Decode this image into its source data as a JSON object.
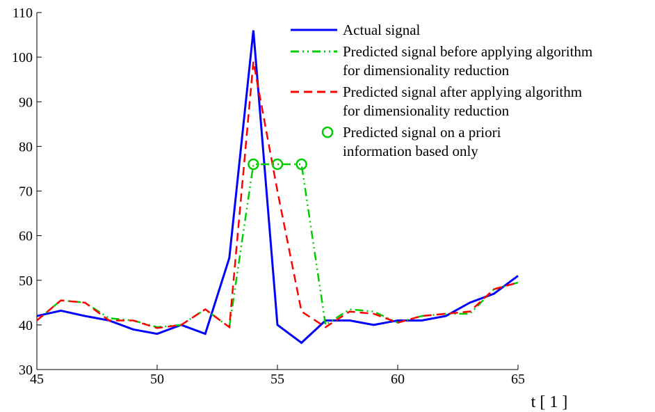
{
  "chart_data": {
    "type": "line",
    "x": [
      45,
      46,
      47,
      48,
      49,
      50,
      51,
      52,
      53,
      54,
      55,
      56,
      57,
      58,
      59,
      60,
      61,
      62,
      63,
      64,
      65
    ],
    "xlabel": "t [ 1 ]",
    "xlim": [
      45,
      65
    ],
    "xticks": [
      45,
      50,
      55,
      60,
      65
    ],
    "ylim": [
      30,
      110
    ],
    "yticks": [
      30,
      40,
      50,
      60,
      70,
      80,
      90,
      100,
      110
    ],
    "legend": "upper right",
    "series": [
      {
        "name": "Actual signal",
        "color": "#0000ff",
        "style": "solid",
        "values": [
          42,
          43.2,
          42,
          41,
          39,
          38,
          40,
          38,
          55,
          106,
          40,
          36,
          41,
          41,
          40,
          41,
          41,
          42,
          45,
          47,
          51
        ]
      },
      {
        "name": "Predicted signal before applying algorithm\nfor dimensionality reduction",
        "color": "#00cc00",
        "style": "dashdot",
        "values": [
          41,
          45.5,
          45,
          41.5,
          41,
          39.5,
          40,
          43.5,
          39.5,
          76,
          76,
          76,
          40,
          43.5,
          43,
          40.5,
          42,
          42.5,
          42.5,
          48,
          49.5
        ]
      },
      {
        "name": "Predicted signal after applying algorithm\nfor dimensionality reduction",
        "color": "#ff0000",
        "style": "dashed",
        "values": [
          41,
          45.5,
          45,
          41,
          41,
          39.3,
          40,
          43.5,
          39.5,
          99,
          70,
          43,
          39.5,
          43,
          42.5,
          40.5,
          42,
          42.5,
          43,
          48,
          49.5
        ]
      },
      {
        "name": "Predicted signal on a priori\ninformation based only",
        "color": "#00cc00",
        "style": "circle",
        "x": [
          54,
          55,
          56
        ],
        "values": [
          76,
          76,
          76
        ]
      }
    ]
  }
}
